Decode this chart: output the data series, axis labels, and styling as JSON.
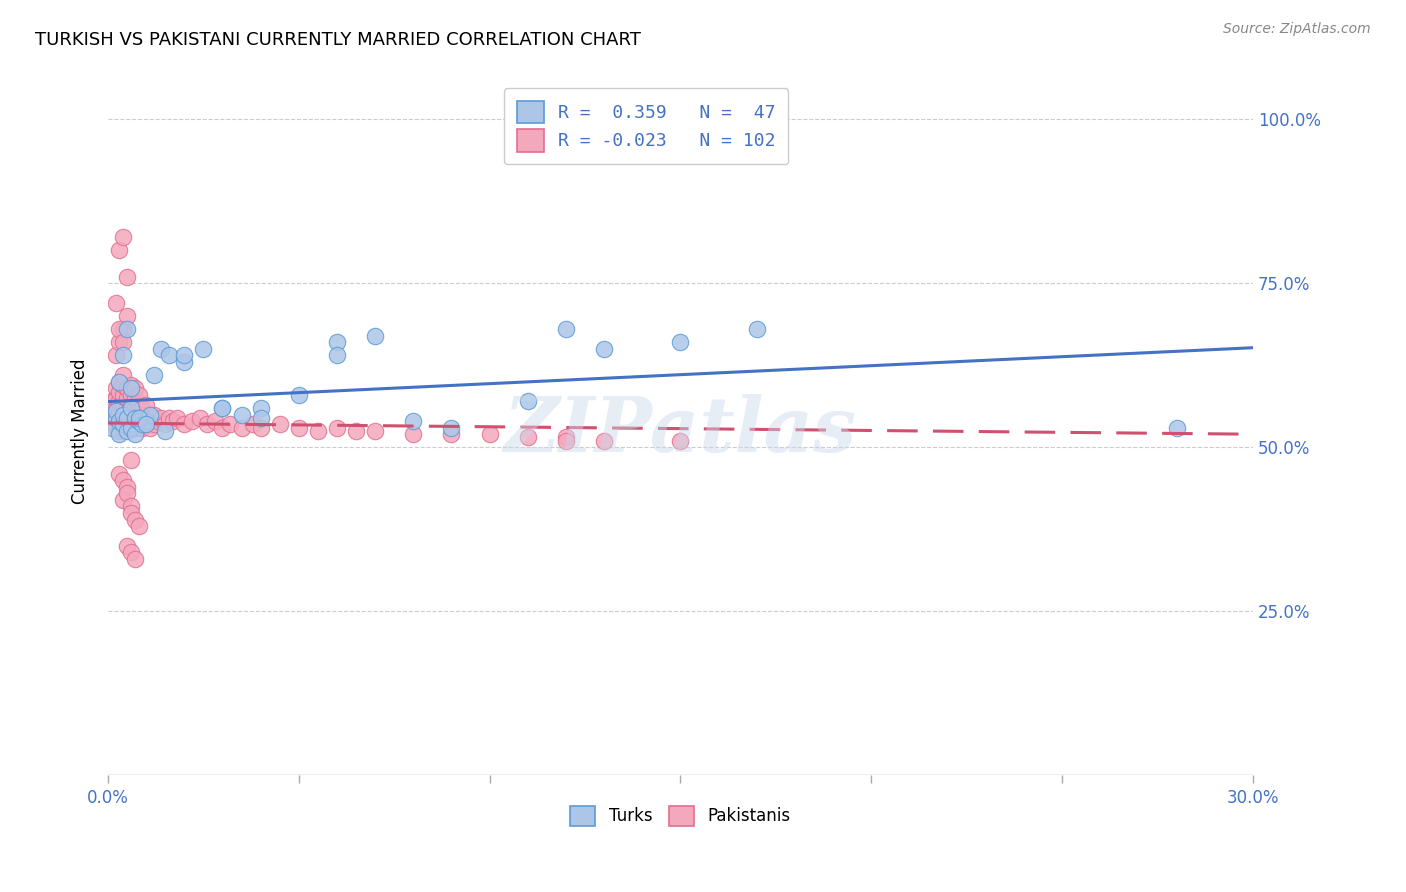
{
  "title": "TURKISH VS PAKISTANI CURRENTLY MARRIED CORRELATION CHART",
  "source": "Source: ZipAtlas.com",
  "ylabel": "Currently Married",
  "ytick_labels": [
    "",
    "25.0%",
    "50.0%",
    "75.0%",
    "100.0%"
  ],
  "ytick_vals": [
    0.0,
    0.25,
    0.5,
    0.75,
    1.0
  ],
  "xlim": [
    0.0,
    0.3
  ],
  "ylim": [
    0.0,
    1.05
  ],
  "turks_color": "#adc6e8",
  "turks_edge_color": "#5b9bd5",
  "pakistanis_color": "#f4a8be",
  "pakistanis_edge_color": "#e07090",
  "trend_turks_color": "#4472c4",
  "trend_pakistanis_color": "#d05070",
  "legend_text_color": "#4472c4",
  "turks_R": 0.359,
  "turks_N": 47,
  "pakistanis_R": -0.023,
  "pakistanis_N": 102,
  "watermark": "ZIPatlas",
  "turks_x": [
    0.001,
    0.002,
    0.002,
    0.003,
    0.003,
    0.004,
    0.004,
    0.005,
    0.005,
    0.006,
    0.006,
    0.007,
    0.007,
    0.008,
    0.009,
    0.01,
    0.011,
    0.012,
    0.014,
    0.016,
    0.02,
    0.025,
    0.03,
    0.035,
    0.04,
    0.05,
    0.06,
    0.07,
    0.09,
    0.11,
    0.13,
    0.15,
    0.17,
    0.003,
    0.004,
    0.005,
    0.006,
    0.008,
    0.01,
    0.015,
    0.02,
    0.03,
    0.04,
    0.06,
    0.08,
    0.12,
    0.28
  ],
  "turks_y": [
    0.53,
    0.545,
    0.555,
    0.52,
    0.54,
    0.535,
    0.55,
    0.525,
    0.545,
    0.53,
    0.56,
    0.52,
    0.545,
    0.54,
    0.535,
    0.54,
    0.55,
    0.61,
    0.65,
    0.64,
    0.63,
    0.65,
    0.56,
    0.55,
    0.56,
    0.58,
    0.66,
    0.67,
    0.53,
    0.57,
    0.65,
    0.66,
    0.68,
    0.6,
    0.64,
    0.68,
    0.59,
    0.545,
    0.535,
    0.525,
    0.64,
    0.56,
    0.545,
    0.64,
    0.54,
    0.68,
    0.53
  ],
  "pakistanis_x": [
    0.001,
    0.001,
    0.001,
    0.002,
    0.002,
    0.002,
    0.002,
    0.002,
    0.003,
    0.003,
    0.003,
    0.003,
    0.003,
    0.003,
    0.004,
    0.004,
    0.004,
    0.004,
    0.004,
    0.004,
    0.005,
    0.005,
    0.005,
    0.005,
    0.005,
    0.006,
    0.006,
    0.006,
    0.006,
    0.006,
    0.007,
    0.007,
    0.007,
    0.007,
    0.007,
    0.008,
    0.008,
    0.008,
    0.008,
    0.009,
    0.009,
    0.009,
    0.01,
    0.01,
    0.01,
    0.011,
    0.011,
    0.012,
    0.012,
    0.013,
    0.014,
    0.015,
    0.016,
    0.017,
    0.018,
    0.02,
    0.022,
    0.024,
    0.026,
    0.028,
    0.03,
    0.032,
    0.035,
    0.038,
    0.04,
    0.045,
    0.05,
    0.055,
    0.06,
    0.065,
    0.07,
    0.08,
    0.09,
    0.1,
    0.11,
    0.12,
    0.002,
    0.003,
    0.004,
    0.005,
    0.002,
    0.003,
    0.004,
    0.005,
    0.003,
    0.004,
    0.003,
    0.004,
    0.005,
    0.006,
    0.004,
    0.005,
    0.006,
    0.006,
    0.007,
    0.008,
    0.005,
    0.006,
    0.007,
    0.12,
    0.13,
    0.15
  ],
  "pakistanis_y": [
    0.54,
    0.555,
    0.57,
    0.53,
    0.545,
    0.56,
    0.575,
    0.59,
    0.525,
    0.54,
    0.555,
    0.57,
    0.585,
    0.6,
    0.535,
    0.55,
    0.565,
    0.58,
    0.595,
    0.61,
    0.53,
    0.545,
    0.56,
    0.575,
    0.59,
    0.535,
    0.55,
    0.565,
    0.58,
    0.595,
    0.53,
    0.545,
    0.56,
    0.575,
    0.59,
    0.535,
    0.55,
    0.565,
    0.58,
    0.53,
    0.545,
    0.56,
    0.535,
    0.55,
    0.565,
    0.53,
    0.545,
    0.535,
    0.55,
    0.54,
    0.545,
    0.535,
    0.545,
    0.54,
    0.545,
    0.535,
    0.54,
    0.545,
    0.535,
    0.54,
    0.53,
    0.535,
    0.53,
    0.535,
    0.53,
    0.535,
    0.53,
    0.525,
    0.53,
    0.525,
    0.525,
    0.52,
    0.52,
    0.52,
    0.515,
    0.515,
    0.64,
    0.66,
    0.68,
    0.7,
    0.72,
    0.68,
    0.66,
    0.76,
    0.8,
    0.82,
    0.46,
    0.45,
    0.44,
    0.48,
    0.42,
    0.43,
    0.41,
    0.4,
    0.39,
    0.38,
    0.35,
    0.34,
    0.33,
    0.51,
    0.51,
    0.51
  ]
}
